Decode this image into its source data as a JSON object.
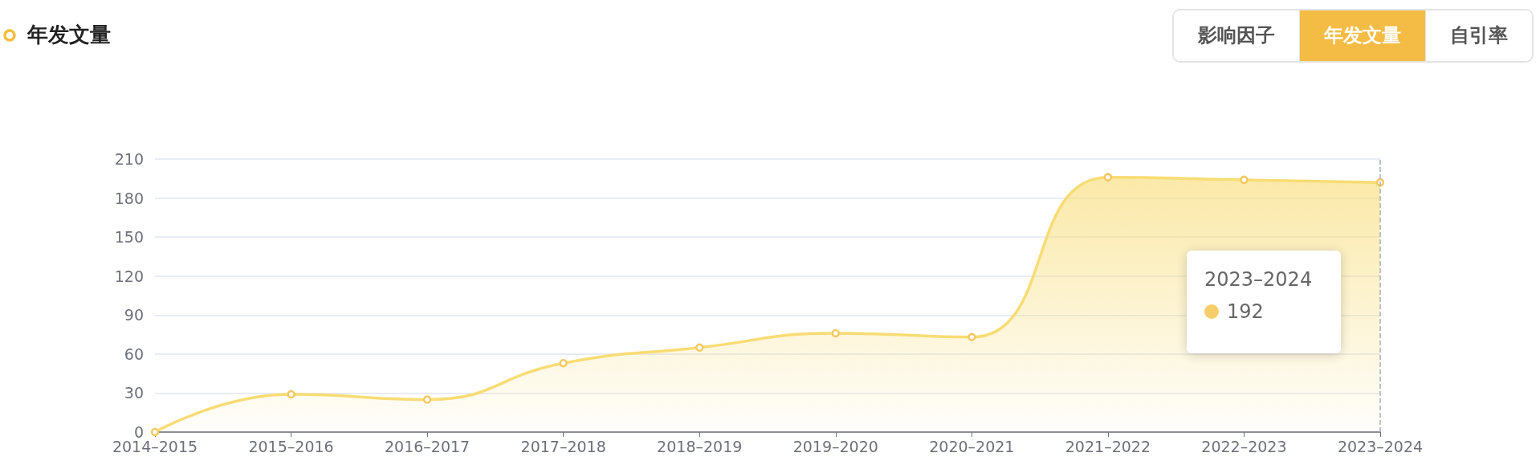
{
  "chart_data": {
    "type": "area",
    "title": "年发文量",
    "categories": [
      "2014–2015",
      "2015–2016",
      "2016–2017",
      "2017–2018",
      "2018–2019",
      "2019–2020",
      "2020–2021",
      "2021–2022",
      "2022–2023",
      "2023–2024"
    ],
    "series": [
      {
        "color": "#f8dc74",
        "values": [
          0,
          29,
          25,
          53,
          65,
          76,
          73,
          196,
          194,
          192
        ]
      }
    ],
    "ylim": [
      0,
      210
    ],
    "yticks": [
      0,
      30,
      60,
      90,
      120,
      150,
      180,
      210
    ],
    "grid": "y",
    "marker": "circle",
    "line_style": "solid",
    "ref_lines": [
      {
        "axis": "x",
        "value": "2023–2024",
        "color": "#a8adb8",
        "line_style": "dashed"
      }
    ],
    "annotations": [
      "影响因子",
      "年发文量",
      "自引率",
      "2023–2024",
      "192"
    ]
  }
}
